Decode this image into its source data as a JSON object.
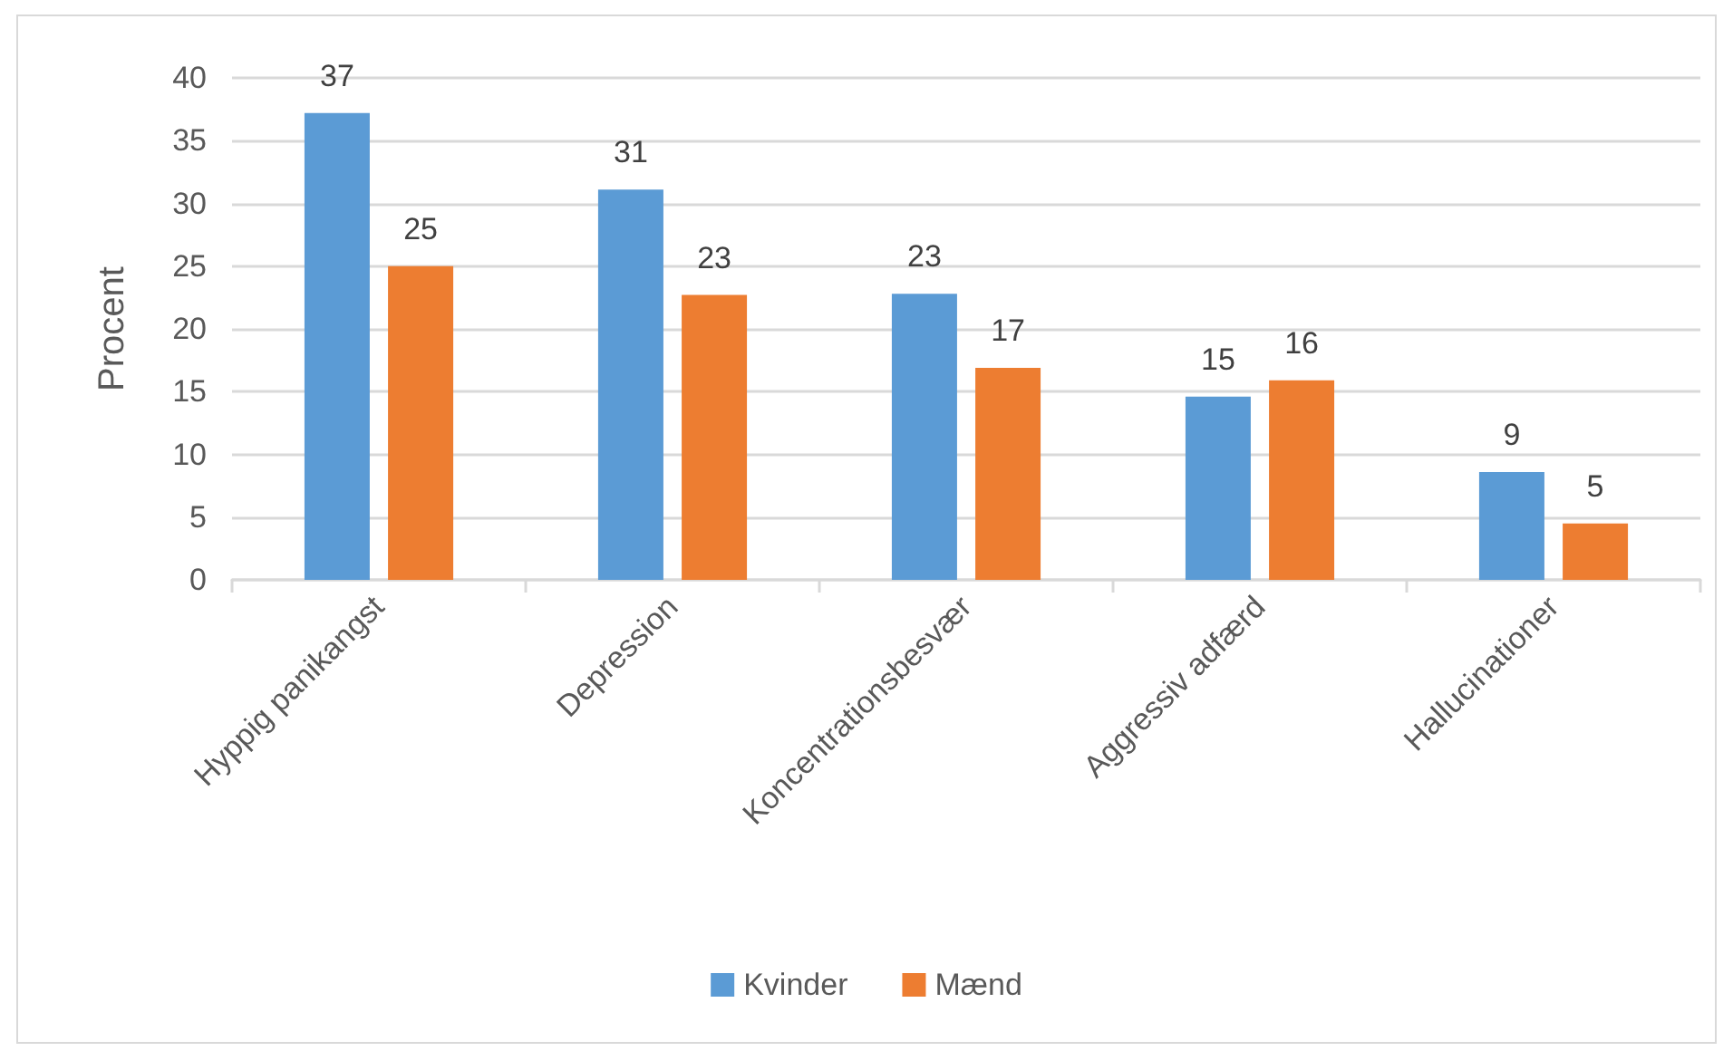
{
  "chart_data": {
    "type": "bar",
    "ylabel": "Procent",
    "categories": [
      "Hyppig panikangst",
      "Depression",
      "Koncentrationsbesvær",
      "Aggressiv adfærd",
      "Hallucinationer"
    ],
    "series": [
      {
        "name": "Kvinder",
        "color": "#5b9bd5",
        "values": [
          37.2,
          31.1,
          22.8,
          14.6,
          8.6
        ],
        "value_labels": [
          "37",
          "31",
          "23",
          "15",
          "9"
        ]
      },
      {
        "name": "Mænd",
        "color": "#ed7d31",
        "values": [
          25.0,
          22.7,
          16.9,
          15.9,
          4.5
        ],
        "value_labels": [
          "25",
          "23",
          "17",
          "16",
          "5"
        ]
      }
    ],
    "ylim": [
      0,
      40
    ],
    "yticks": [
      0,
      5,
      10,
      15,
      20,
      25,
      30,
      35,
      40
    ],
    "grid": "y",
    "legend": "bottom"
  }
}
